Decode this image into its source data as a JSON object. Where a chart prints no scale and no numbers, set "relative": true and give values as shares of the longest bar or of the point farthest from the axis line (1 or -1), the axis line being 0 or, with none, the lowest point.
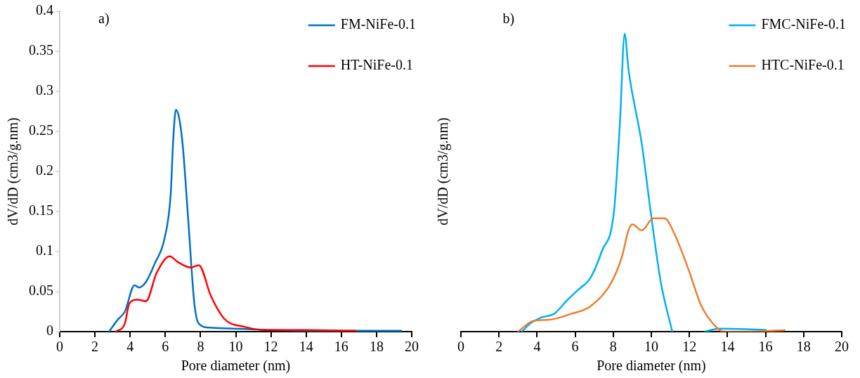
{
  "chart_data": [
    {
      "type": "line",
      "xlabel": "Pore diameter (nm)",
      "ylabel": "dV/dD (cm3/g.nm)",
      "annotations": [
        "a)"
      ],
      "xlim": [
        0,
        20
      ],
      "xticks": [
        0,
        2,
        4,
        6,
        8,
        10,
        12,
        14,
        16,
        18,
        20
      ],
      "ylim": [
        0,
        0.4
      ],
      "yticks": [
        0,
        0.05,
        0.1,
        0.15,
        0.2,
        0.25,
        0.3,
        0.35,
        0.4
      ],
      "grid": false,
      "legend": "top right",
      "marker": "none",
      "line_style": "solid",
      "series": [
        {
          "name": "FM-NiFe-0.1",
          "color": "#0070c0",
          "x": [
            2.8,
            3.3,
            3.7,
            4.25,
            4.5,
            4.9,
            5.4,
            5.95,
            6.3,
            6.45,
            6.6,
            6.8,
            7.0,
            7.3,
            7.65,
            7.9,
            8.5,
            9.7,
            12,
            16,
            19.4
          ],
          "values": [
            0,
            0.015,
            0.025,
            0.058,
            0.055,
            0.062,
            0.085,
            0.116,
            0.17,
            0.24,
            0.277,
            0.265,
            0.23,
            0.14,
            0.035,
            0.01,
            0.005,
            0.004,
            0.002,
            0.001,
            0.001
          ]
        },
        {
          "name": "HT-NiFe-0.1",
          "color": "#ff0000",
          "x": [
            3.2,
            3.7,
            3.95,
            4.4,
            4.9,
            5.5,
            6.25,
            6.7,
            7.45,
            7.9,
            8.6,
            9.35,
            10.5,
            11.7,
            14,
            16.8
          ],
          "values": [
            0,
            0.01,
            0.035,
            0.04,
            0.038,
            0.073,
            0.094,
            0.087,
            0.08,
            0.083,
            0.044,
            0.016,
            0.006,
            0.002,
            0.002,
            0.001
          ]
        }
      ]
    },
    {
      "type": "line",
      "xlabel": "Pore diameter (nm)",
      "ylabel": "dV/dD (cm3/g.nm)",
      "annotations": [
        "b)"
      ],
      "xlim": [
        0,
        20
      ],
      "xticks": [
        0,
        2,
        4,
        6,
        8,
        10,
        12,
        14,
        16,
        18,
        20
      ],
      "relative": true,
      "tick_labels": "x",
      "grid": false,
      "legend": "top right",
      "marker": "none",
      "line_style": "solid",
      "series": [
        {
          "name": "FMC-NiFe-0.1",
          "color": "#00b0f0",
          "x": [
            3.2,
            3.7,
            4.25,
            4.9,
            5.5,
            6.15,
            6.8,
            7.4,
            8.05,
            8.35,
            8.6,
            8.8,
            9.5,
            9.95,
            10.5,
            11.1,
            12,
            12.8,
            13.6,
            16
          ],
          "values": [
            0,
            0.03,
            0.048,
            0.06,
            0.1,
            0.14,
            0.18,
            0.27,
            0.41,
            0.7,
            1,
            0.88,
            0.63,
            0.41,
            0.165,
            0,
            null,
            0,
            0.01,
            0.006
          ]
        },
        {
          "name": "HTC-NiFe-0.1",
          "color": "#ed7d31",
          "x": [
            3.0,
            3.8,
            4.65,
            5.8,
            6.8,
            7.9,
            8.45,
            8.8,
            9.0,
            9.5,
            10.1,
            10.7,
            11.2,
            12,
            12.6,
            13.2,
            13.8,
            15,
            17
          ],
          "values": [
            0,
            0.036,
            0.04,
            0.06,
            0.085,
            0.165,
            0.25,
            0.34,
            0.36,
            0.34,
            0.38,
            0.38,
            0.33,
            0.2,
            0.09,
            0.03,
            0,
            0,
            0.005
          ]
        }
      ]
    }
  ]
}
